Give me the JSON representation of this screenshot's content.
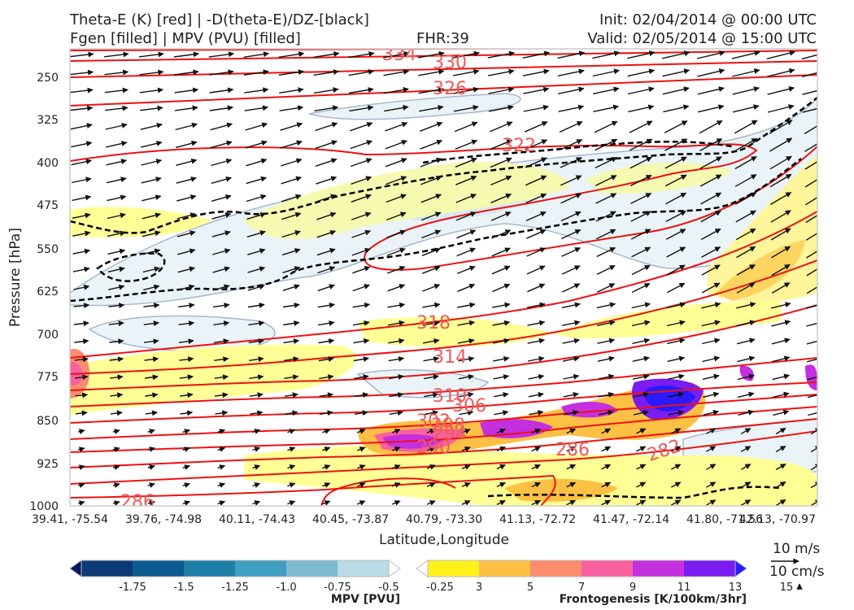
{
  "header": {
    "title_line1": "Theta-E (K) [red] | -D(theta-E)/DZ-[black]",
    "title_line2": "Fgen [filled] | MPV (PVU) [filled]",
    "fhr": "FHR:39",
    "init": "Init: 02/04/2014 @ 00:00 UTC",
    "valid": "Valid: 02/05/2014 @ 15:00 UTC"
  },
  "chart_data": {
    "type": "cross-section",
    "xlabel": "Latitude,Longitude",
    "ylabel": "Pressure [hPa]",
    "x_ticks": [
      "39.41, -75.54",
      "39.76, -74.98",
      "40.11, -74.43",
      "40.45, -73.87",
      "40.79, -73.30",
      "41.13, -72.72",
      "41.47, -72.14",
      "41.80, -71.56",
      "42.13, -70.97"
    ],
    "y_ticks": [
      250,
      325,
      400,
      475,
      550,
      625,
      700,
      775,
      850,
      925,
      1000
    ],
    "ylim": [
      1000,
      190
    ],
    "theta_e_contour_labels": [
      "334",
      "330",
      "326",
      "322",
      "318",
      "314",
      "310",
      "306",
      "302",
      "298",
      "294",
      "290",
      "286",
      "282",
      "286"
    ],
    "wind_reference": {
      "horizontal": "10 m/s",
      "vertical": "10 cm/s"
    },
    "colorbars": [
      {
        "label": "MPV [PVU]",
        "ticks": [
          "-1.75",
          "-1.5",
          "-1.25",
          "-1.0",
          "-0.75",
          "-0.5",
          "-0.25"
        ],
        "colors": [
          "#08185e",
          "#0b3a78",
          "#0c5a8f",
          "#1e7fa8",
          "#3f9fc2",
          "#7cbcd3",
          "#b8dbe5",
          "#ffffff"
        ]
      },
      {
        "label": "Frontogenesis [K/100km/3hr]",
        "ticks": [
          "3",
          "5",
          "7",
          "9",
          "11",
          "13",
          "15"
        ],
        "colors": [
          "#ffffff",
          "#fff21a",
          "#fcc044",
          "#fb8c6c",
          "#f8609f",
          "#c42fe0",
          "#7a1cf2",
          "#2a1aff"
        ]
      }
    ]
  }
}
